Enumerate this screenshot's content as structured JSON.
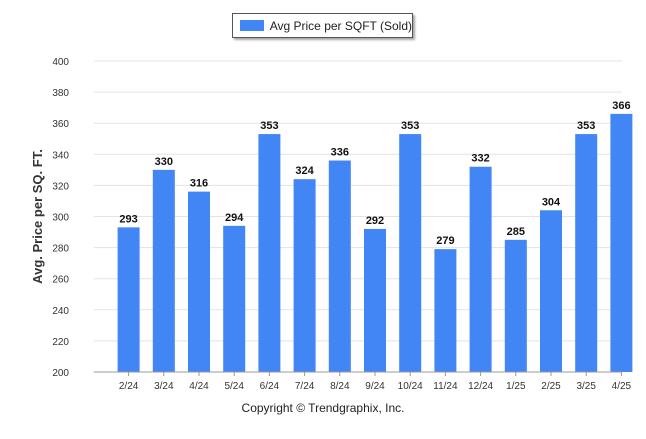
{
  "legend": {
    "label": "Avg Price per SQFT (Sold)",
    "color": "#4285f4"
  },
  "footer": {
    "copyright": "Copyright © Trendgraphix, Inc."
  },
  "chart_data": {
    "type": "bar",
    "title": "",
    "ylabel": "Avg. Price per SQ. FT.",
    "xlabel": "",
    "ylim": [
      200,
      400
    ],
    "yticks": [
      200,
      220,
      240,
      260,
      280,
      300,
      320,
      340,
      360,
      380,
      400
    ],
    "grid": true,
    "legend_position": "top-center",
    "categories": [
      "2/24",
      "3/24",
      "4/24",
      "5/24",
      "6/24",
      "7/24",
      "8/24",
      "9/24",
      "10/24",
      "11/24",
      "12/24",
      "1/25",
      "2/25",
      "3/25",
      "4/25"
    ],
    "series": [
      {
        "name": "Avg Price per SQFT (Sold)",
        "color": "#4285f4",
        "values": [
          293,
          330,
          316,
          294,
          353,
          324,
          336,
          292,
          353,
          279,
          332,
          285,
          304,
          353,
          366
        ]
      }
    ]
  }
}
